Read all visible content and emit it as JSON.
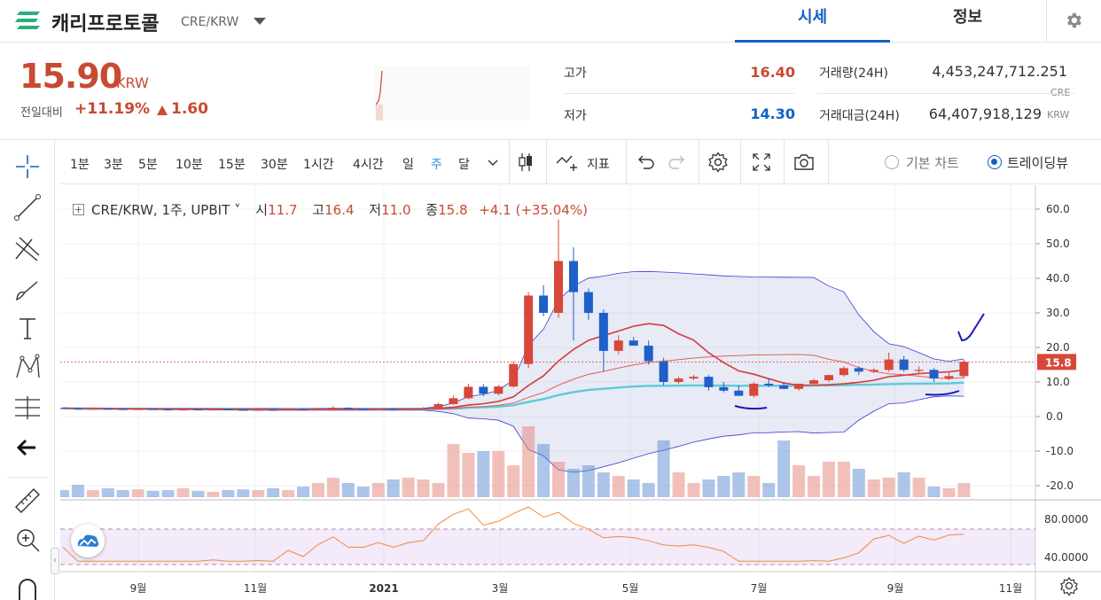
{
  "header": {
    "coin_name": "캐리프로토콜",
    "pair": "CRE/KRW",
    "tabs": [
      {
        "label": "시세",
        "active": true
      },
      {
        "label": "정보",
        "active": false
      }
    ]
  },
  "summary": {
    "price": "15.90",
    "price_unit": "KRW",
    "change_label": "전일대비",
    "change_rate": "+11.19%",
    "change_value": "1.60",
    "high_label": "고가",
    "high_value": "16.40",
    "low_label": "저가",
    "low_value": "14.30",
    "volume_label": "거래량(24H)",
    "volume_value": "4,453,247,712.251",
    "volume_unit": "CRE",
    "amount_label": "거래대금(24H)",
    "amount_value": "64,407,918,129",
    "amount_unit": "KRW",
    "colors": {
      "up": "#c84a31",
      "down": "#1261c4"
    }
  },
  "toolbar": {
    "timeframes": [
      "1분",
      "3분",
      "5분",
      "10분",
      "15분",
      "30분",
      "1시간",
      "4시간",
      "일",
      "주",
      "달"
    ],
    "active_timeframe": "주",
    "indicator_label": "지표",
    "chart_modes": [
      {
        "label": "기본 차트",
        "selected": false
      },
      {
        "label": "트레이딩뷰",
        "selected": true
      }
    ]
  },
  "legend": {
    "symbol": "CRE/KRW, 1주, UPBIT",
    "open_label": "시",
    "open": "11.7",
    "high_label": "고",
    "high": "16.4",
    "low_label": "저",
    "low": "11.0",
    "close_label": "종",
    "close": "15.8",
    "change": "+4.1 (+35.04%)"
  },
  "chart_data": {
    "type": "candlestick",
    "x_ticks": [
      "9월",
      "11월",
      "2021",
      "3월",
      "5월",
      "7월",
      "9월",
      "11월"
    ],
    "y_ticks": [
      "60.0",
      "50.0",
      "40.0",
      "30.0",
      "20.0",
      "10.0",
      "0.0",
      "-10.0",
      "-20.0"
    ],
    "ylim": [
      -22,
      62
    ],
    "last_price_label": "15.8",
    "last_price": 15.8,
    "candles": [
      [
        2.5,
        2.6,
        2.2,
        2.4
      ],
      [
        2.4,
        2.6,
        2.1,
        2.2
      ],
      [
        2.2,
        2.4,
        2.0,
        2.3
      ],
      [
        2.3,
        2.4,
        2.1,
        2.2
      ],
      [
        2.2,
        2.3,
        2.0,
        2.1
      ],
      [
        2.1,
        2.3,
        2.0,
        2.2
      ],
      [
        2.2,
        2.3,
        2.0,
        2.1
      ],
      [
        2.1,
        2.2,
        1.9,
        2.0
      ],
      [
        2.0,
        2.2,
        1.9,
        2.1
      ],
      [
        2.1,
        2.2,
        1.9,
        2.0
      ],
      [
        2.0,
        2.2,
        1.9,
        2.1
      ],
      [
        2.1,
        2.2,
        1.9,
        2.0
      ],
      [
        2.0,
        2.1,
        1.8,
        1.9
      ],
      [
        1.9,
        2.1,
        1.8,
        2.0
      ],
      [
        2.0,
        2.1,
        1.8,
        1.9
      ],
      [
        1.9,
        2.2,
        1.8,
        2.1
      ],
      [
        2.1,
        2.4,
        1.9,
        2.0
      ],
      [
        2.0,
        2.6,
        1.9,
        2.3
      ],
      [
        2.3,
        3.0,
        2.2,
        2.5
      ],
      [
        2.5,
        2.7,
        2.1,
        2.2
      ],
      [
        2.2,
        2.4,
        2.0,
        2.1
      ],
      [
        2.1,
        2.3,
        2.0,
        2.2
      ],
      [
        2.2,
        2.4,
        2.0,
        2.1
      ],
      [
        2.1,
        2.3,
        2.0,
        2.2
      ],
      [
        2.2,
        2.7,
        2.1,
        2.4
      ],
      [
        2.4,
        4.0,
        2.3,
        3.6
      ],
      [
        3.6,
        6.0,
        3.4,
        5.3
      ],
      [
        5.3,
        9.5,
        5.0,
        8.6
      ],
      [
        8.6,
        9.4,
        5.9,
        6.6
      ],
      [
        6.6,
        9.2,
        6.1,
        8.7
      ],
      [
        8.7,
        16.0,
        8.3,
        15.2
      ],
      [
        15.2,
        36.0,
        14.0,
        35.0
      ],
      [
        35.0,
        38.0,
        29.0,
        30.0
      ],
      [
        30.0,
        57.0,
        28.5,
        45.0
      ],
      [
        45.0,
        49.0,
        22.0,
        36.0
      ],
      [
        36.0,
        37.0,
        28.0,
        30.0
      ],
      [
        30.0,
        31.0,
        13.0,
        19.0
      ],
      [
        19.0,
        23.5,
        18.0,
        22.0
      ],
      [
        22.0,
        23.0,
        20.5,
        20.5
      ],
      [
        20.5,
        22.0,
        15.0,
        16.0
      ],
      [
        16.0,
        17.0,
        9.0,
        10.0
      ],
      [
        10.0,
        11.5,
        9.5,
        11.0
      ],
      [
        11.0,
        12.0,
        10.5,
        11.5
      ],
      [
        11.5,
        12.0,
        7.5,
        8.5
      ],
      [
        8.5,
        10.0,
        7.0,
        7.5
      ],
      [
        7.5,
        9.0,
        6.0,
        6.0
      ],
      [
        6.0,
        10.0,
        5.5,
        9.5
      ],
      [
        9.5,
        11.0,
        8.5,
        9.0
      ],
      [
        9.0,
        10.0,
        8.0,
        8.0
      ],
      [
        8.0,
        9.5,
        7.5,
        9.5
      ],
      [
        9.5,
        11.0,
        9.0,
        10.5
      ],
      [
        10.5,
        12.0,
        10.0,
        12.0
      ],
      [
        12.0,
        14.5,
        11.5,
        14.0
      ],
      [
        14.0,
        14.5,
        12.0,
        13.0
      ],
      [
        13.0,
        14.0,
        12.5,
        13.5
      ],
      [
        13.5,
        18.5,
        13.0,
        16.5
      ],
      [
        16.5,
        17.5,
        13.0,
        13.5
      ],
      [
        13.5,
        14.5,
        12.5,
        13.5
      ],
      [
        13.5,
        14.0,
        10.0,
        11.0
      ],
      [
        11.0,
        13.0,
        10.5,
        11.7
      ],
      [
        11.7,
        16.4,
        11.0,
        15.8
      ]
    ],
    "volume": [
      0.2,
      0.35,
      0.2,
      0.25,
      0.2,
      0.22,
      0.18,
      0.2,
      0.25,
      0.18,
      0.15,
      0.2,
      0.22,
      0.2,
      0.25,
      0.2,
      0.3,
      0.4,
      0.55,
      0.4,
      0.3,
      0.4,
      0.5,
      0.55,
      0.5,
      0.4,
      1.5,
      1.25,
      1.3,
      1.3,
      0.9,
      2.0,
      1.5,
      1.0,
      0.8,
      0.9,
      0.7,
      0.6,
      0.5,
      0.4,
      1.6,
      0.7,
      0.4,
      0.5,
      0.6,
      0.7,
      0.6,
      0.4,
      1.6,
      0.9,
      0.6,
      1.0,
      1.0,
      0.8,
      0.5,
      0.55,
      0.7,
      0.55,
      0.3,
      0.25,
      0.4
    ],
    "rsi_ticks": [
      "80.0000",
      "40.0000"
    ]
  }
}
